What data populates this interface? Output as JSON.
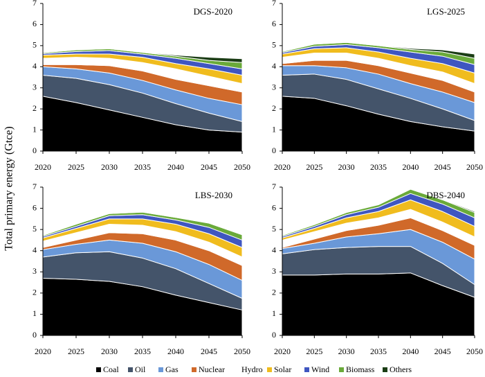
{
  "chart_data": [
    {
      "type": "area",
      "title": "DGS-2020",
      "ylabel": "Total primary energy (Gtce)",
      "x": [
        2020,
        2025,
        2030,
        2035,
        2040,
        2045,
        2050
      ],
      "xlim": [
        2020,
        2050
      ],
      "xticks": [
        2020,
        2025,
        2030,
        2035,
        2040,
        2045,
        2050
      ],
      "ylim": [
        0,
        7
      ],
      "yticks": [
        0,
        1,
        2,
        3,
        4,
        5,
        6,
        7
      ],
      "series": [
        {
          "name": "Coal",
          "color": "#000000",
          "values": [
            2.6,
            2.3,
            1.95,
            1.6,
            1.25,
            1.0,
            0.9
          ]
        },
        {
          "name": "Oil",
          "color": "#44546a",
          "values": [
            1.0,
            1.15,
            1.2,
            1.15,
            1.0,
            0.8,
            0.5
          ]
        },
        {
          "name": "Gas",
          "color": "#6a98d8",
          "values": [
            0.4,
            0.45,
            0.55,
            0.6,
            0.65,
            0.7,
            0.8
          ]
        },
        {
          "name": "Nuclear",
          "color": "#d0692a",
          "values": [
            0.1,
            0.2,
            0.35,
            0.45,
            0.5,
            0.6,
            0.6
          ]
        },
        {
          "name": "Hydro",
          "color": "#ffffff",
          "values": [
            0.3,
            0.35,
            0.35,
            0.4,
            0.5,
            0.45,
            0.4
          ]
        },
        {
          "name": "Solar",
          "color": "#f0bc1e",
          "values": [
            0.15,
            0.15,
            0.2,
            0.25,
            0.25,
            0.35,
            0.4
          ]
        },
        {
          "name": "Wind",
          "color": "#3f56c0",
          "values": [
            0.07,
            0.12,
            0.17,
            0.15,
            0.25,
            0.25,
            0.3
          ]
        },
        {
          "name": "Biomass",
          "color": "#6aaa3a",
          "values": [
            0.05,
            0.08,
            0.08,
            0.08,
            0.1,
            0.15,
            0.3
          ]
        },
        {
          "name": "Others",
          "color": "#1b3d15",
          "values": [
            0,
            0,
            0.01,
            0.02,
            0.05,
            0.15,
            0.18
          ]
        }
      ]
    },
    {
      "type": "area",
      "title": "LGS-2025",
      "x": [
        2020,
        2025,
        2030,
        2035,
        2040,
        2045,
        2050
      ],
      "xlim": [
        2020,
        2050
      ],
      "xticks": [
        2020,
        2025,
        2030,
        2035,
        2040,
        2045,
        2050
      ],
      "ylim": [
        0,
        7
      ],
      "yticks": [
        0,
        1,
        2,
        3,
        4,
        5,
        6,
        7
      ],
      "series": [
        {
          "name": "Coal",
          "color": "#000000",
          "values": [
            2.6,
            2.5,
            2.15,
            1.75,
            1.4,
            1.15,
            0.95
          ]
        },
        {
          "name": "Oil",
          "color": "#44546a",
          "values": [
            1.0,
            1.15,
            1.25,
            1.2,
            1.1,
            0.85,
            0.5
          ]
        },
        {
          "name": "Gas",
          "color": "#6a98d8",
          "values": [
            0.45,
            0.4,
            0.55,
            0.7,
            0.7,
            0.8,
            0.85
          ]
        },
        {
          "name": "Nuclear",
          "color": "#d0692a",
          "values": [
            0.1,
            0.25,
            0.35,
            0.4,
            0.5,
            0.55,
            0.5
          ]
        },
        {
          "name": "Hydro",
          "color": "#ffffff",
          "values": [
            0.3,
            0.35,
            0.35,
            0.35,
            0.35,
            0.4,
            0.4
          ]
        },
        {
          "name": "Solar",
          "color": "#f0bc1e",
          "values": [
            0.15,
            0.2,
            0.25,
            0.3,
            0.35,
            0.4,
            0.5
          ]
        },
        {
          "name": "Wind",
          "color": "#3f56c0",
          "values": [
            0.07,
            0.12,
            0.15,
            0.2,
            0.3,
            0.35,
            0.4
          ]
        },
        {
          "name": "Biomass",
          "color": "#6aaa3a",
          "values": [
            0.05,
            0.1,
            0.1,
            0.1,
            0.12,
            0.2,
            0.3
          ]
        },
        {
          "name": "Others",
          "color": "#1b3d15",
          "values": [
            0,
            0,
            0.02,
            0.02,
            0.05,
            0.1,
            0.2
          ]
        }
      ]
    },
    {
      "type": "area",
      "title": "LBS-2030",
      "x": [
        2020,
        2025,
        2030,
        2035,
        2040,
        2045,
        2050
      ],
      "xlim": [
        2020,
        2050
      ],
      "xticks": [
        2020,
        2025,
        2030,
        2035,
        2040,
        2045,
        2050
      ],
      "ylim": [
        0,
        7
      ],
      "yticks": [
        0,
        1,
        2,
        3,
        4,
        5,
        6,
        7
      ],
      "series": [
        {
          "name": "Coal",
          "color": "#000000",
          "values": [
            2.7,
            2.65,
            2.55,
            2.3,
            1.9,
            1.55,
            1.2
          ]
        },
        {
          "name": "Oil",
          "color": "#44546a",
          "values": [
            1.0,
            1.25,
            1.4,
            1.35,
            1.25,
            0.9,
            0.55
          ]
        },
        {
          "name": "Gas",
          "color": "#6a98d8",
          "values": [
            0.35,
            0.4,
            0.55,
            0.7,
            0.8,
            0.9,
            0.85
          ]
        },
        {
          "name": "Nuclear",
          "color": "#d0692a",
          "values": [
            0.1,
            0.2,
            0.35,
            0.45,
            0.55,
            0.65,
            0.7
          ]
        },
        {
          "name": "Hydro",
          "color": "#ffffff",
          "values": [
            0.3,
            0.35,
            0.4,
            0.4,
            0.4,
            0.4,
            0.4
          ]
        },
        {
          "name": "Solar",
          "color": "#f0bc1e",
          "values": [
            0.15,
            0.2,
            0.25,
            0.3,
            0.35,
            0.4,
            0.45
          ]
        },
        {
          "name": "Wind",
          "color": "#3f56c0",
          "values": [
            0.07,
            0.1,
            0.15,
            0.2,
            0.2,
            0.3,
            0.35
          ]
        },
        {
          "name": "Biomass",
          "color": "#6aaa3a",
          "values": [
            0.05,
            0.1,
            0.1,
            0.12,
            0.12,
            0.2,
            0.25
          ]
        },
        {
          "name": "Others",
          "color": "#1b3d15",
          "values": [
            0,
            0,
            0.02,
            0.02,
            0.02,
            0.02,
            0.02
          ]
        }
      ]
    },
    {
      "type": "area",
      "title": "DBS-2040",
      "x": [
        2020,
        2025,
        2030,
        2035,
        2040,
        2045,
        2050
      ],
      "xlim": [
        2020,
        2050
      ],
      "xticks": [
        2020,
        2025,
        2030,
        2035,
        2040,
        2045,
        2050
      ],
      "ylim": [
        0,
        7
      ],
      "yticks": [
        0,
        1,
        2,
        3,
        4,
        5,
        6,
        7
      ],
      "series": [
        {
          "name": "Coal",
          "color": "#000000",
          "values": [
            2.85,
            2.85,
            2.9,
            2.9,
            2.95,
            2.35,
            1.8
          ]
        },
        {
          "name": "Oil",
          "color": "#44546a",
          "values": [
            1.0,
            1.2,
            1.25,
            1.3,
            1.25,
            1.05,
            0.6
          ]
        },
        {
          "name": "Gas",
          "color": "#6a98d8",
          "values": [
            0.25,
            0.3,
            0.5,
            0.6,
            0.8,
            1.0,
            1.2
          ]
        },
        {
          "name": "Nuclear",
          "color": "#d0692a",
          "values": [
            0.05,
            0.2,
            0.3,
            0.4,
            0.55,
            0.55,
            0.65
          ]
        },
        {
          "name": "Hydro",
          "color": "#ffffff",
          "values": [
            0.35,
            0.35,
            0.35,
            0.35,
            0.4,
            0.4,
            0.4
          ]
        },
        {
          "name": "Solar",
          "color": "#f0bc1e",
          "values": [
            0.1,
            0.15,
            0.25,
            0.3,
            0.45,
            0.5,
            0.5
          ]
        },
        {
          "name": "Wind",
          "color": "#3f56c0",
          "values": [
            0.07,
            0.1,
            0.15,
            0.2,
            0.3,
            0.35,
            0.4
          ]
        },
        {
          "name": "Biomass",
          "color": "#6aaa3a",
          "values": [
            0.05,
            0.08,
            0.1,
            0.12,
            0.2,
            0.2,
            0.25
          ]
        },
        {
          "name": "Others",
          "color": "#1b3d15",
          "values": [
            0,
            0,
            0,
            0,
            0.02,
            0.03,
            0.05
          ]
        }
      ]
    }
  ]
}
